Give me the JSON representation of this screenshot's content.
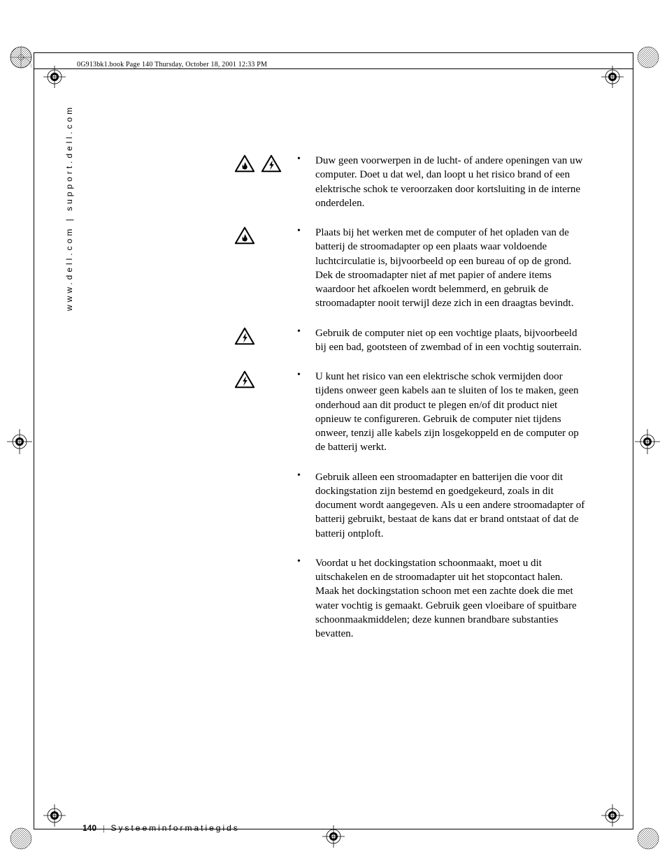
{
  "header": "0G913bk1.book  Page 140  Thursday, October 18, 2001  12:33 PM",
  "side_text": "www.dell.com | support.dell.com",
  "items": [
    {
      "icons": [
        "fire",
        "shock"
      ],
      "text": "Duw geen voorwerpen in de lucht- of andere openingen van uw computer. Doet u dat wel, dan loopt u het risico brand of een elektrische schok te veroorzaken door kortsluiting in de interne onderdelen."
    },
    {
      "icons": [
        "fire"
      ],
      "text": "Plaats bij het werken met de computer of het opladen van de batterij de stroomadapter op een plaats waar voldoende luchtcirculatie is, bijvoorbeeld op een bureau of op de grond. Dek de stroomadapter niet af met papier of andere items waardoor het afkoelen wordt belemmerd, en gebruik de stroomadapter nooit terwijl deze zich in een draagtas bevindt."
    },
    {
      "icons": [
        "shock"
      ],
      "text": "Gebruik de computer niet op een vochtige plaats, bijvoorbeeld bij een bad, gootsteen of zwembad of in een vochtig souterrain."
    },
    {
      "icons": [
        "shock"
      ],
      "text": "U kunt het risico van een elektrische schok vermijden door tijdens onweer geen kabels aan te sluiten of los te maken, geen onderhoud aan dit product te plegen en/of dit product niet opnieuw te configureren. Gebruik de computer niet tijdens onweer, tenzij alle kabels zijn losgekoppeld en de computer op de batterij werkt."
    },
    {
      "icons": [],
      "text": "Gebruik alleen een stroomadapter en batterijen die voor dit dockingstation zijn bestemd en goedgekeurd, zoals in dit document wordt aangegeven. Als u een andere stroomadapter of batterij gebruikt, bestaat de kans dat er brand ontstaat of dat de batterij ontploft."
    },
    {
      "icons": [],
      "text": "Voordat u het dockingstation schoonmaakt, moet u dit uitschakelen en de stroomadapter uit het stopcontact halen. Maak het dockingstation schoon met een zachte doek die met water vochtig is gemaakt. Gebruik geen vloeibare of spuitbare schoonmaakmiddelen; deze kunnen brandbare substanties bevatten."
    }
  ],
  "footer": {
    "page_number": "140",
    "title": "Systeeminformatiegids"
  },
  "colors": {
    "text": "#000000",
    "background": "#ffffff"
  }
}
